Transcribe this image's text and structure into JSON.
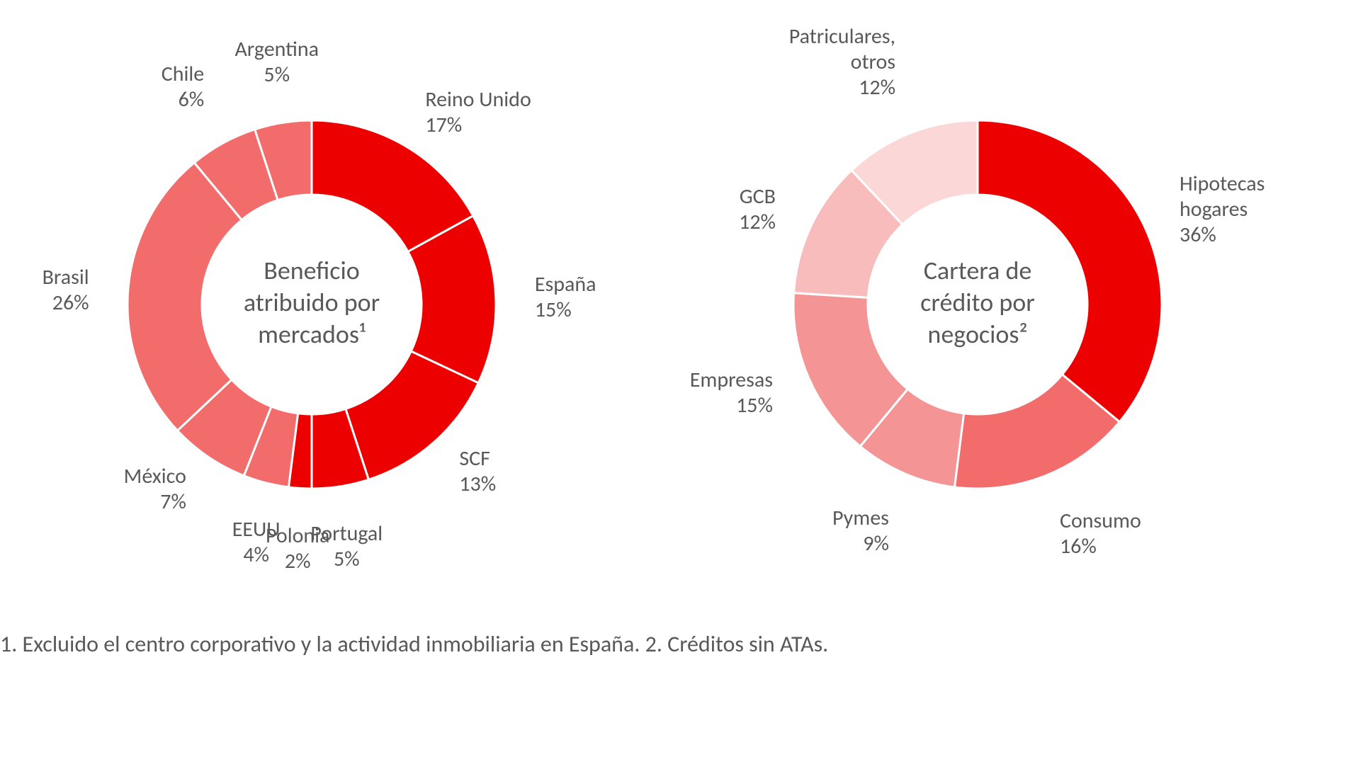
{
  "background_color": "#ffffff",
  "text_color": "#595959",
  "font_family": "Calibri, 'Segoe UI', Arial, sans-serif",
  "footnote_text": "1. Excluido el centro corporativo y la actividad inmobiliaria en España. 2. Créditos sin ATAs.",
  "footnote_fontsize": 32,
  "charts": {
    "chart1": {
      "type": "donut",
      "center_title_line1": "Beneficio",
      "center_title_line2": "atribuido por",
      "center_title_line3": "mercados¹",
      "center_fontsize": 36,
      "outer_radius": 260,
      "inner_radius": 155,
      "gap_color": "#ffffff",
      "gap_width": 3,
      "start_angle_deg": -90,
      "label_fontsize": 30,
      "slices": [
        {
          "label_line1": "Reino Unido",
          "label_line2": "17%",
          "value": 17,
          "color": "#ec0000"
        },
        {
          "label_line1": "España",
          "label_line2": "15%",
          "value": 15,
          "color": "#ec0000"
        },
        {
          "label_line1": "SCF",
          "label_line2": "13%",
          "value": 13,
          "color": "#ec0000"
        },
        {
          "label_line1": "Portugal",
          "label_line2": "5%",
          "value": 5,
          "color": "#ec0000"
        },
        {
          "label_line1": "Polonia",
          "label_line2": "2%",
          "value": 2,
          "color": "#ec0000"
        },
        {
          "label_line1": "EEUU",
          "label_line2": "4%",
          "value": 4,
          "color": "#f26c6c"
        },
        {
          "label_line1": "México",
          "label_line2": "7%",
          "value": 7,
          "color": "#f26c6c"
        },
        {
          "label_line1": "Brasil",
          "label_line2": "26%",
          "value": 26,
          "color": "#f26c6c"
        },
        {
          "label_line1": "Chile",
          "label_line2": "6%",
          "value": 6,
          "color": "#f26c6c"
        },
        {
          "label_line1": "Argentina",
          "label_line2": "5%",
          "value": 5,
          "color": "#f26c6c"
        }
      ]
    },
    "chart2": {
      "type": "donut",
      "center_title_line1": "Cartera de",
      "center_title_line2": "crédito por",
      "center_title_line3": "negocios²",
      "center_fontsize": 36,
      "outer_radius": 260,
      "inner_radius": 155,
      "gap_color": "#ffffff",
      "gap_width": 3,
      "start_angle_deg": -90,
      "label_fontsize": 30,
      "slices": [
        {
          "label_line1": "Hipotecas",
          "label_line2": "hogares",
          "label_line3": "36%",
          "value": 36,
          "color": "#ec0000"
        },
        {
          "label_line1": "Consumo",
          "label_line2": "16%",
          "value": 16,
          "color": "#f26c6c"
        },
        {
          "label_line1": "Pymes",
          "label_line2": "9%",
          "value": 9,
          "color": "#f59494"
        },
        {
          "label_line1": "Empresas",
          "label_line2": "15%",
          "value": 15,
          "color": "#f59494"
        },
        {
          "label_line1": "GCB",
          "label_line2": "12%",
          "value": 12,
          "color": "#f9bcbc"
        },
        {
          "label_line1": "Patriculares,",
          "label_line2": "otros",
          "label_line3": "12%",
          "value": 12,
          "color": "#fbd7d7"
        }
      ]
    }
  }
}
